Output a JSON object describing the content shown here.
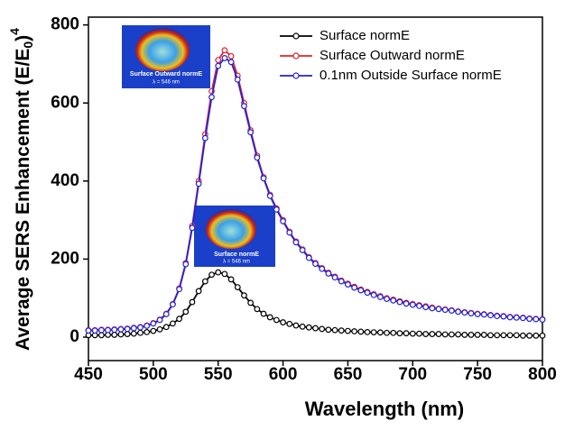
{
  "chart_data": {
    "type": "line",
    "x_label": "Wavelength (nm)",
    "y_label": {
      "main": "Average SERS Enhancement (E/E",
      "sub": "0",
      "close": ")",
      "sup": "4"
    },
    "x": [
      450,
      455,
      460,
      465,
      470,
      475,
      480,
      485,
      490,
      495,
      500,
      505,
      510,
      515,
      520,
      525,
      530,
      535,
      540,
      545,
      550,
      555,
      560,
      565,
      570,
      575,
      580,
      585,
      590,
      595,
      600,
      605,
      610,
      615,
      620,
      625,
      630,
      635,
      640,
      645,
      650,
      655,
      660,
      665,
      670,
      675,
      680,
      685,
      690,
      695,
      700,
      705,
      710,
      715,
      720,
      725,
      730,
      735,
      740,
      745,
      750,
      755,
      760,
      765,
      770,
      775,
      780,
      785,
      790,
      795,
      800
    ],
    "series": [
      {
        "name": "Surface normE",
        "color": "#000000",
        "values": [
          5,
          5,
          5,
          6,
          6,
          7,
          8,
          9,
          11,
          13,
          16,
          20,
          26,
          35,
          47,
          65,
          90,
          118,
          143,
          160,
          166,
          162,
          148,
          128,
          107,
          88,
          72,
          60,
          51,
          44,
          38,
          34,
          30,
          27,
          25,
          23,
          21,
          19,
          18,
          17,
          16,
          15,
          14,
          13,
          12.5,
          12,
          11,
          11,
          10,
          10,
          9,
          9,
          8,
          8,
          8,
          7,
          7,
          7,
          6,
          6,
          6,
          6,
          5,
          5,
          5,
          5,
          5,
          4,
          4,
          4,
          4
        ]
      },
      {
        "name": "Surface Outward normE",
        "color": "#e8202a",
        "values": [
          18,
          18,
          19,
          19,
          20,
          21,
          22,
          24,
          26,
          30,
          36,
          45,
          60,
          85,
          125,
          190,
          285,
          400,
          520,
          630,
          710,
          735,
          720,
          670,
          600,
          530,
          465,
          410,
          365,
          330,
          300,
          270,
          245,
          225,
          205,
          190,
          177,
          165,
          155,
          145,
          137,
          129,
          122,
          116,
          110,
          105,
          100,
          96,
          92,
          88,
          85,
          82,
          79,
          76,
          73,
          71,
          69,
          66,
          64,
          62,
          60,
          59,
          57,
          55,
          54,
          52,
          51,
          50,
          48,
          47,
          46
        ]
      },
      {
        "name": "0.1nm Outside Surface normE",
        "color": "#2323d8",
        "values": [
          17,
          17,
          18,
          18,
          19,
          20,
          21,
          23,
          25,
          29,
          35,
          44,
          59,
          84,
          123,
          187,
          280,
          393,
          510,
          615,
          695,
          715,
          705,
          660,
          592,
          525,
          460,
          407,
          362,
          327,
          297,
          268,
          243,
          223,
          203,
          188,
          175,
          163,
          153,
          143,
          135,
          127,
          120,
          114,
          108,
          103,
          98,
          94,
          90,
          86,
          83,
          80,
          77,
          74,
          72,
          70,
          68,
          65,
          63,
          61,
          59,
          58,
          56,
          54,
          53,
          51,
          50,
          49,
          47,
          46,
          45
        ]
      }
    ],
    "xlim": [
      450,
      800
    ],
    "xticks": [
      450,
      500,
      550,
      600,
      650,
      700,
      750,
      800
    ],
    "ylim": [
      -60,
      820
    ],
    "yticks": [
      0,
      200,
      400,
      600,
      800
    ],
    "legend": "upper right",
    "annotations": [
      {
        "title": "Surface Outward normE",
        "subtitle": "λ = 546 nm"
      },
      {
        "title": "Surface normE",
        "subtitle": "λ = 546 nm"
      }
    ]
  }
}
